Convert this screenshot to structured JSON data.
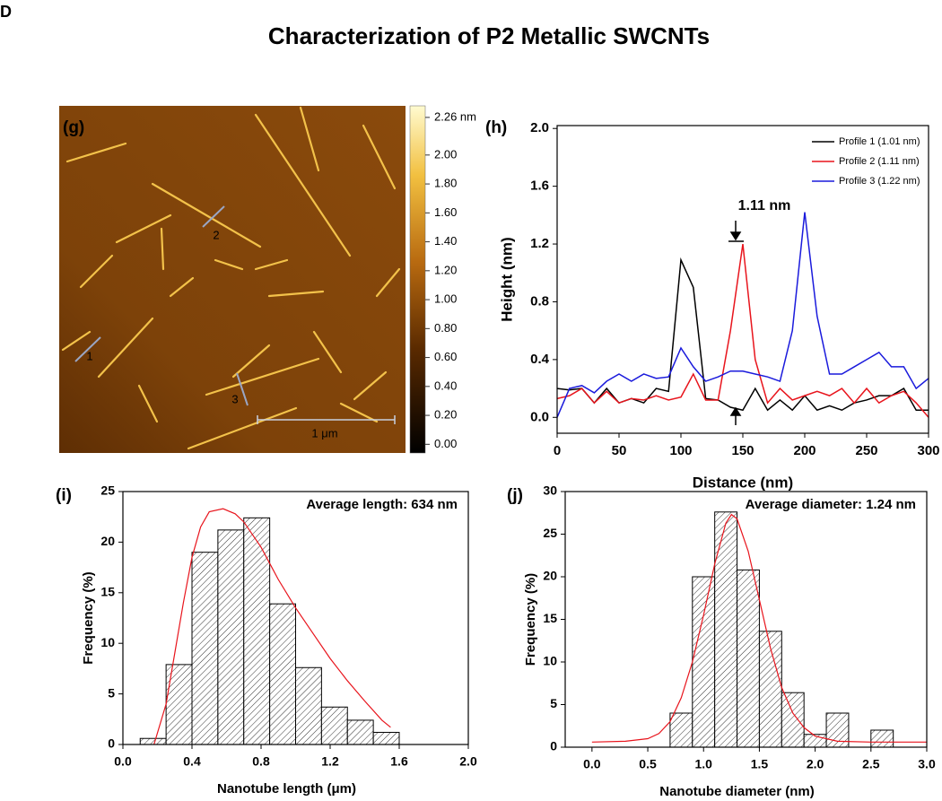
{
  "panel_label": "D",
  "title": "Characterization of P2 Metallic SWCNTs",
  "chart_data": [
    {
      "type": "image",
      "panel_label": "(g)",
      "scale_bar": "1 μm",
      "profile_labels": [
        "1",
        "2",
        "3"
      ],
      "colorbar": {
        "lim": [
          -0.06,
          2.34
        ],
        "ticks": [
          {
            "value": 0,
            "label": "0.00"
          },
          {
            "value": 0.2,
            "label": "0.20"
          },
          {
            "value": 0.4,
            "label": "0.40"
          },
          {
            "value": 0.6,
            "label": "0.60"
          },
          {
            "value": 0.8,
            "label": "0.80"
          },
          {
            "value": 1.0,
            "label": "1.00"
          },
          {
            "value": 1.2,
            "label": "1.20"
          },
          {
            "value": 1.4,
            "label": "1.40"
          },
          {
            "value": 1.6,
            "label": "1.60"
          },
          {
            "value": 1.8,
            "label": "1.80"
          },
          {
            "value": 2.0,
            "label": "2.00"
          },
          {
            "value": 2.26,
            "label": "2.26 nm"
          }
        ]
      }
    },
    {
      "type": "line",
      "panel_label": "(h)",
      "xlabel": "Distance (nm)",
      "ylabel": "Height (nm)",
      "annotation": "1.11 nm",
      "legend": "upper right",
      "x": [
        0,
        10,
        20,
        30,
        40,
        50,
        60,
        70,
        80,
        90,
        100,
        110,
        120,
        130,
        140,
        150,
        160,
        170,
        180,
        190,
        200,
        210,
        220,
        230,
        240,
        250,
        260,
        270,
        280,
        290,
        300
      ],
      "xlim": [
        0,
        300
      ],
      "xticks": [
        0,
        50,
        100,
        150,
        200,
        250,
        300
      ],
      "ylim": [
        -0.11,
        2.02
      ],
      "yticks": [
        {
          "value": 0,
          "label": "0.0"
        },
        {
          "value": 0.4,
          "label": "0.4"
        },
        {
          "value": 0.8,
          "label": "0.8"
        },
        {
          "value": 1.2,
          "label": "1.2"
        },
        {
          "value": 1.6,
          "label": "1.6"
        },
        {
          "value": 2.0,
          "label": "2.0"
        }
      ],
      "series": [
        {
          "name": "Profile 1 (1.01 nm)",
          "color": "#000000",
          "values": [
            0.2,
            0.19,
            0.2,
            0.1,
            0.2,
            0.1,
            0.13,
            0.1,
            0.2,
            0.18,
            1.09,
            0.9,
            0.13,
            0.12,
            0.07,
            0.05,
            0.2,
            0.05,
            0.12,
            0.05,
            0.15,
            0.05,
            0.08,
            0.05,
            0.1,
            0.12,
            0.15,
            0.15,
            0.2,
            0.05,
            0.05
          ]
        },
        {
          "name": "Profile 2 (1.11 nm)",
          "color": "#e8141c",
          "values": [
            0.13,
            0.15,
            0.2,
            0.1,
            0.18,
            0.1,
            0.13,
            0.12,
            0.15,
            0.12,
            0.14,
            0.3,
            0.12,
            0.12,
            0.6,
            1.2,
            0.4,
            0.1,
            0.2,
            0.12,
            0.15,
            0.18,
            0.15,
            0.2,
            0.1,
            0.2,
            0.1,
            0.15,
            0.18,
            0.1,
            0.0
          ]
        },
        {
          "name": "Profile 3 (1.22 nm)",
          "color": "#1a1adc",
          "values": [
            0.0,
            0.2,
            0.22,
            0.17,
            0.25,
            0.3,
            0.25,
            0.3,
            0.27,
            0.28,
            0.48,
            0.35,
            0.25,
            0.28,
            0.32,
            0.32,
            0.3,
            0.28,
            0.25,
            0.6,
            1.42,
            0.7,
            0.3,
            0.3,
            0.35,
            0.4,
            0.45,
            0.35,
            0.35,
            0.2,
            0.27
          ]
        }
      ]
    },
    {
      "type": "histogram",
      "panel_label": "(i)",
      "xlabel": "Nanotube length (μm)",
      "ylabel": "Frequency (%)",
      "annotation": "Average length: 634 nm",
      "bins": [
        0.1,
        0.25,
        0.4,
        0.55,
        0.7,
        0.85,
        1.0,
        1.15,
        1.3,
        1.45,
        1.6
      ],
      "counts": [
        0.6,
        7.9,
        19,
        21.2,
        22.4,
        13.9,
        7.6,
        3.7,
        2.4,
        1.2
      ],
      "fit": {
        "color": "#e8141c",
        "x": [
          0.18,
          0.25,
          0.3,
          0.35,
          0.4,
          0.45,
          0.5,
          0.58,
          0.65,
          0.7,
          0.8,
          0.9,
          1.0,
          1.1,
          1.2,
          1.3,
          1.4,
          1.5,
          1.55
        ],
        "y": [
          0,
          4,
          9,
          14,
          18.5,
          21.5,
          23,
          23.3,
          22.8,
          22,
          19.5,
          16.3,
          13.5,
          11,
          8.5,
          6.3,
          4.3,
          2.4,
          1.7
        ]
      },
      "xlim": [
        0,
        2
      ],
      "xticks": [
        {
          "value": 0,
          "label": "0.0"
        },
        {
          "value": 0.4,
          "label": "0.4"
        },
        {
          "value": 0.8,
          "label": "0.8"
        },
        {
          "value": 1.2,
          "label": "1.2"
        },
        {
          "value": 1.6,
          "label": "1.6"
        },
        {
          "value": 2.0,
          "label": "2.0"
        }
      ],
      "ylim": [
        0,
        25
      ],
      "yticks": [
        0,
        5,
        10,
        15,
        20,
        25
      ]
    },
    {
      "type": "histogram",
      "panel_label": "(j)",
      "xlabel": "Nanotube diameter (nm)",
      "ylabel": "Frequency (%)",
      "annotation": "Average diameter: 1.24 nm",
      "bins": [
        0.7,
        0.9,
        1.1,
        1.3,
        1.5,
        1.7,
        1.9,
        2.1,
        2.3,
        2.5,
        2.7
      ],
      "counts": [
        4,
        20,
        27.6,
        20.8,
        13.6,
        6.4,
        1.5,
        4,
        0,
        2
      ],
      "fit": {
        "color": "#e8141c",
        "x": [
          0,
          0.3,
          0.5,
          0.6,
          0.7,
          0.8,
          0.9,
          1.0,
          1.1,
          1.2,
          1.25,
          1.3,
          1.4,
          1.5,
          1.6,
          1.7,
          1.8,
          1.9,
          2.0,
          2.2,
          2.5,
          3.0
        ],
        "y": [
          0.6,
          0.7,
          1,
          1.6,
          3,
          5.8,
          10,
          15.5,
          21.5,
          26.3,
          27.3,
          26.8,
          23,
          17.3,
          11.6,
          7,
          4,
          2.3,
          1.3,
          0.7,
          0.6,
          0.6
        ]
      },
      "xlim": [
        -0.24,
        3.0
      ],
      "xticks": [
        {
          "value": 0,
          "label": "0.0"
        },
        {
          "value": 0.5,
          "label": "0.5"
        },
        {
          "value": 1.0,
          "label": "1.0"
        },
        {
          "value": 1.5,
          "label": "1.5"
        },
        {
          "value": 2.0,
          "label": "2.0"
        },
        {
          "value": 2.5,
          "label": "2.5"
        },
        {
          "value": 3.0,
          "label": "3.0"
        }
      ],
      "ylim": [
        0,
        30
      ],
      "yticks": [
        0,
        5,
        10,
        15,
        20,
        25,
        30
      ]
    }
  ]
}
